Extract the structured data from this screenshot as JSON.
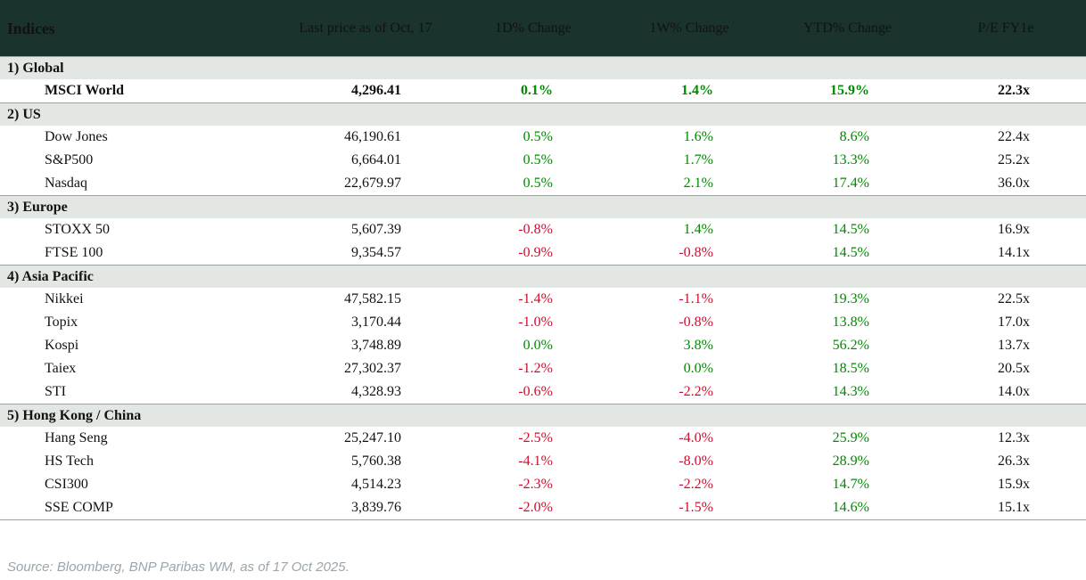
{
  "table": {
    "header": {
      "indices": "Indices",
      "last_price": "Last price as of Oct, 17",
      "d1": "1D% Change",
      "w1": "1W% Change",
      "ytd": "YTD% Change",
      "pe": "P/E FY1e"
    },
    "sections": [
      {
        "label": "1) Global",
        "rows": [
          {
            "name": "MSCI World",
            "last": "4,296.41",
            "d1": "0.1%",
            "w1": "1.4%",
            "ytd": "15.9%",
            "pe": "22.3x",
            "bold": true
          }
        ]
      },
      {
        "label": "2) US",
        "rows": [
          {
            "name": "Dow Jones",
            "last": "46,190.61",
            "d1": "0.5%",
            "w1": "1.6%",
            "ytd": "8.6%",
            "pe": "22.4x"
          },
          {
            "name": "S&P500",
            "last": "6,664.01",
            "d1": "0.5%",
            "w1": "1.7%",
            "ytd": "13.3%",
            "pe": "25.2x"
          },
          {
            "name": "Nasdaq",
            "last": "22,679.97",
            "d1": "0.5%",
            "w1": "2.1%",
            "ytd": "17.4%",
            "pe": "36.0x"
          }
        ]
      },
      {
        "label": "3) Europe",
        "rows": [
          {
            "name": "STOXX 50",
            "last": "5,607.39",
            "d1": "-0.8%",
            "w1": "1.4%",
            "ytd": "14.5%",
            "pe": "16.9x"
          },
          {
            "name": "FTSE 100",
            "last": "9,354.57",
            "d1": "-0.9%",
            "w1": "-0.8%",
            "ytd": "14.5%",
            "pe": "14.1x"
          }
        ]
      },
      {
        "label": "4) Asia Pacific",
        "rows": [
          {
            "name": "Nikkei",
            "last": "47,582.15",
            "d1": "-1.4%",
            "w1": "-1.1%",
            "ytd": "19.3%",
            "pe": "22.5x"
          },
          {
            "name": "Topix",
            "last": "3,170.44",
            "d1": "-1.0%",
            "w1": "-0.8%",
            "ytd": "13.8%",
            "pe": "17.0x"
          },
          {
            "name": "Kospi",
            "last": "3,748.89",
            "d1": "0.0%",
            "w1": "3.8%",
            "ytd": "56.2%",
            "pe": "13.7x"
          },
          {
            "name": "Taiex",
            "last": "27,302.37",
            "d1": "-1.2%",
            "w1": "0.0%",
            "ytd": "18.5%",
            "pe": "20.5x"
          },
          {
            "name": "STI",
            "last": "4,328.93",
            "d1": "-0.6%",
            "w1": "-2.2%",
            "ytd": "14.3%",
            "pe": "14.0x"
          }
        ]
      },
      {
        "label": "5) Hong Kong / China",
        "rows": [
          {
            "name": "Hang Seng",
            "last": "25,247.10",
            "d1": "-2.5%",
            "w1": "-4.0%",
            "ytd": "25.9%",
            "pe": "12.3x"
          },
          {
            "name": "HS Tech",
            "last": "5,760.38",
            "d1": "-4.1%",
            "w1": "-8.0%",
            "ytd": "28.9%",
            "pe": "26.3x"
          },
          {
            "name": "CSI300",
            "last": "4,514.23",
            "d1": "-2.3%",
            "w1": "-2.2%",
            "ytd": "14.7%",
            "pe": "15.9x"
          },
          {
            "name": "SSE COMP",
            "last": "3,839.76",
            "d1": "-2.0%",
            "w1": "-1.5%",
            "ytd": "14.6%",
            "pe": "15.1x"
          }
        ]
      }
    ]
  },
  "footer": {
    "source": "Source: Bloomberg, BNP Paribas WM, as of 17 Oct 2025."
  },
  "colors": {
    "positive": "#008a00",
    "negative": "#c8102e",
    "header_bg": "#1a332e",
    "header_text": "#f4f4ee",
    "section_bg": "#e3e7e3",
    "border": "#9aa49e",
    "source_text": "#9aa5ac"
  }
}
